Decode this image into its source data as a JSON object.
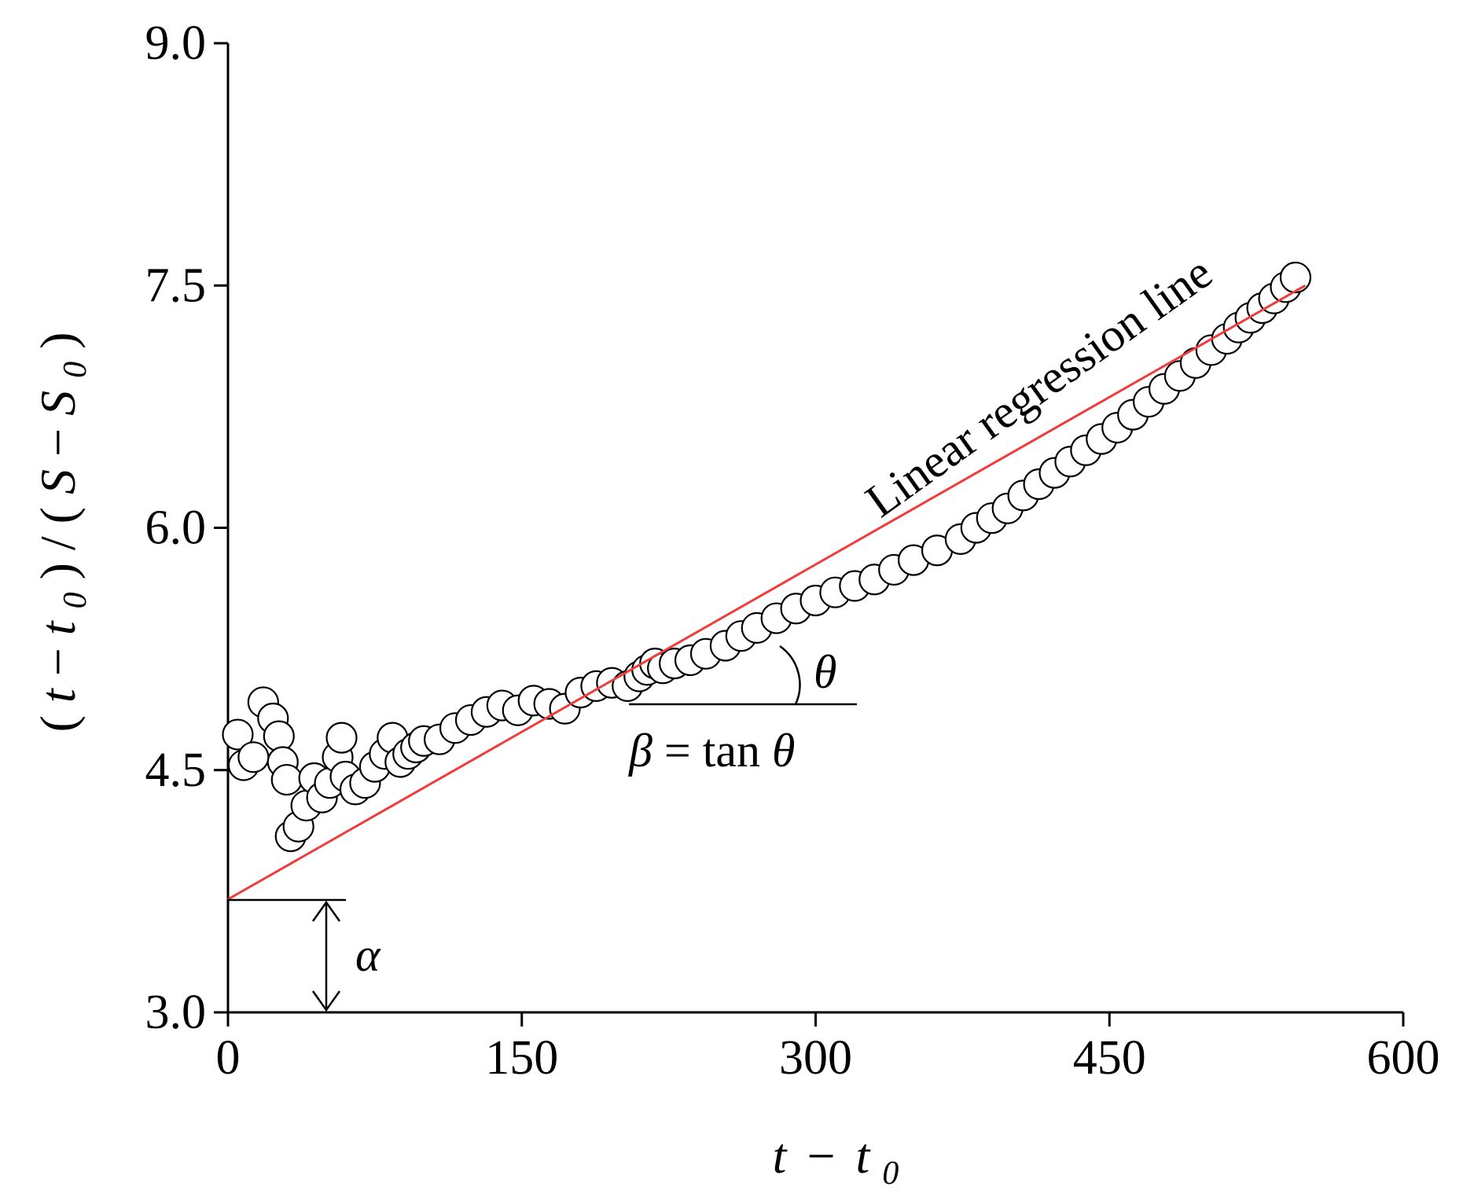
{
  "chart_data": {
    "type": "scatter",
    "title": "",
    "xlabel": {
      "var": "t",
      "minus": "−",
      "sub_var": "t",
      "sub": "0"
    },
    "ylabel": {
      "open": "(",
      "var1": "t",
      "minus": " − ",
      "var2": "t",
      "sub2": "0",
      "mid": ") / (",
      "var3": "S",
      "minus2": " − ",
      "var4": "S",
      "sub4": "0",
      "close": ")"
    },
    "xlim": [
      0,
      600
    ],
    "ylim": [
      3.0,
      9.0
    ],
    "x_ticks": [
      0,
      150,
      300,
      450,
      600
    ],
    "x_tick_labels": [
      "0",
      "150",
      "300",
      "450",
      "600"
    ],
    "y_ticks": [
      3.0,
      4.5,
      6.0,
      7.5,
      9.0
    ],
    "y_tick_labels": [
      "3.0",
      "4.5",
      "6.0",
      "7.5",
      "9.0"
    ],
    "grid": false,
    "series": [
      {
        "marker": "open-circle",
        "x": [
          5,
          8,
          13,
          18,
          23,
          26,
          28,
          30,
          32,
          36,
          40,
          44,
          48,
          52,
          56,
          58,
          60,
          65,
          70,
          75,
          80,
          84,
          88,
          92,
          96,
          100,
          108,
          116,
          124,
          132,
          140,
          148,
          156,
          164,
          172,
          180,
          188,
          196,
          204,
          210,
          214,
          218,
          222,
          228,
          236,
          244,
          254,
          262,
          270,
          280,
          290,
          300,
          310,
          320,
          330,
          340,
          350,
          362,
          374,
          382,
          390,
          398,
          406,
          414,
          422,
          430,
          438,
          446,
          454,
          462,
          470,
          478,
          486,
          494,
          502,
          510,
          516,
          522,
          528,
          534,
          540,
          545
        ],
        "y": [
          4.72,
          4.53,
          4.58,
          4.92,
          4.82,
          4.71,
          4.55,
          4.44,
          4.09,
          4.15,
          4.28,
          4.45,
          4.33,
          4.42,
          4.58,
          4.7,
          4.46,
          4.38,
          4.42,
          4.52,
          4.6,
          4.7,
          4.55,
          4.6,
          4.64,
          4.68,
          4.69,
          4.76,
          4.81,
          4.86,
          4.9,
          4.87,
          4.93,
          4.91,
          4.88,
          4.98,
          5.02,
          5.04,
          5.02,
          5.08,
          5.12,
          5.16,
          5.13,
          5.16,
          5.18,
          5.22,
          5.27,
          5.33,
          5.38,
          5.44,
          5.5,
          5.55,
          5.6,
          5.64,
          5.68,
          5.74,
          5.8,
          5.86,
          5.93,
          6.0,
          6.06,
          6.12,
          6.2,
          6.27,
          6.34,
          6.41,
          6.48,
          6.55,
          6.62,
          6.7,
          6.78,
          6.86,
          6.94,
          7.02,
          7.1,
          7.17,
          7.24,
          7.3,
          7.36,
          7.42,
          7.49,
          7.55
        ]
      }
    ],
    "regression_line": {
      "color": "#f03c3c",
      "x": [
        0,
        550
      ],
      "y": [
        3.7,
        7.5
      ]
    },
    "annotations": {
      "regression_label": "Linear regression line",
      "theta": "θ",
      "beta_var": "β",
      "beta_eq": " = tan ",
      "beta_theta": "θ",
      "alpha": "α"
    }
  }
}
